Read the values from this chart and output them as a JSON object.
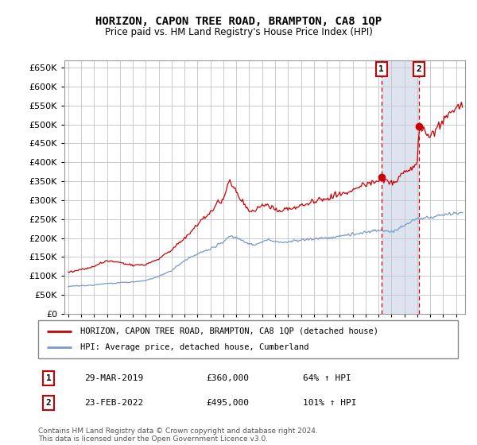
{
  "title": "HORIZON, CAPON TREE ROAD, BRAMPTON, CA8 1QP",
  "subtitle": "Price paid vs. HM Land Registry's House Price Index (HPI)",
  "legend_line1": "HORIZON, CAPON TREE ROAD, BRAMPTON, CA8 1QP (detached house)",
  "legend_line2": "HPI: Average price, detached house, Cumberland",
  "footer": "Contains HM Land Registry data © Crown copyright and database right 2024.\nThis data is licensed under the Open Government Licence v3.0.",
  "annotation1_date": "29-MAR-2019",
  "annotation1_price": "£360,000",
  "annotation1_hpi": "64% ↑ HPI",
  "annotation1_year": 2019.23,
  "annotation1_value": 360000,
  "annotation2_date": "23-FEB-2022",
  "annotation2_price": "£495,000",
  "annotation2_hpi": "101% ↑ HPI",
  "annotation2_year": 2022.14,
  "annotation2_value": 495000,
  "background_color": "#ffffff",
  "plot_bg_color": "#ffffff",
  "grid_color": "#c8c8d0",
  "red_line_color": "#cc0000",
  "blue_line_color": "#7799cc",
  "annotation_box_color": "#cc0000",
  "shaded_region_color": "#dde4f0",
  "ylim": [
    0,
    670000
  ],
  "yticks": [
    0,
    50000,
    100000,
    150000,
    200000,
    250000,
    300000,
    350000,
    400000,
    450000,
    500000,
    550000,
    600000,
    650000
  ],
  "xlim_start": 1994.7,
  "xlim_end": 2025.7
}
